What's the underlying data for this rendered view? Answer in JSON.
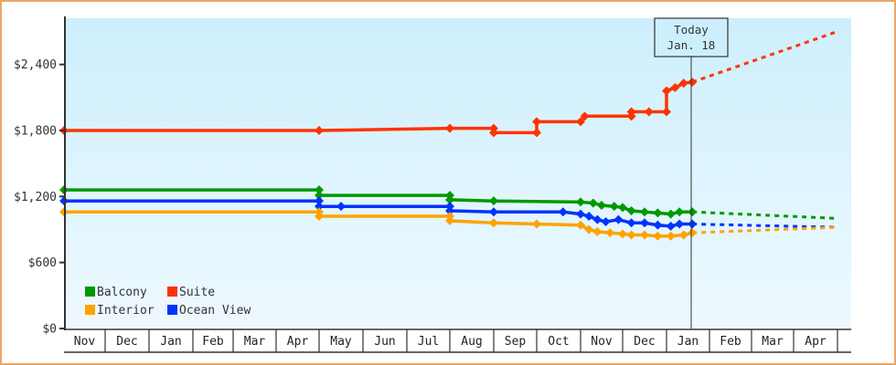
{
  "chart_data": {
    "type": "line",
    "title": "",
    "xlabel": "",
    "ylabel": "",
    "y_ticks": [
      {
        "label": "$0",
        "value": 0
      },
      {
        "label": "$600",
        "value": 600
      },
      {
        "label": "$1,200",
        "value": 1200
      },
      {
        "label": "$1,800",
        "value": 1800
      },
      {
        "label": "$2,400",
        "value": 2400
      }
    ],
    "ylim": [
      0,
      2800
    ],
    "x_months": [
      "Nov",
      "Dec",
      "Jan",
      "Feb",
      "Mar",
      "Apr",
      "May",
      "Jun",
      "Jul",
      "Aug",
      "Sep",
      "Oct",
      "Nov",
      "Dec",
      "Jan",
      "Feb",
      "Mar",
      "Apr"
    ],
    "grid": false,
    "legend_position": "lower-left",
    "today_marker": {
      "line1": "Today",
      "line2": "Jan. 18"
    },
    "series": [
      {
        "name": "Suite",
        "color": "#ff3300",
        "points": [
          [
            0.0,
            1800
          ],
          [
            6.0,
            1800
          ],
          [
            9.0,
            1820
          ],
          [
            10.0,
            1820
          ],
          [
            10.0,
            1780
          ],
          [
            11.0,
            1780
          ],
          [
            11.0,
            1880
          ],
          [
            12.0,
            1880
          ],
          [
            12.1,
            1930
          ],
          [
            13.2,
            1930
          ],
          [
            13.2,
            1970
          ],
          [
            13.6,
            1970
          ],
          [
            14.0,
            1970
          ],
          [
            14.0,
            2160
          ],
          [
            14.2,
            2190
          ],
          [
            14.4,
            2230
          ],
          [
            14.6,
            2240
          ]
        ],
        "forecast": [
          [
            14.6,
            2240
          ],
          [
            18.0,
            2700
          ]
        ]
      },
      {
        "name": "Balcony",
        "color": "#009900",
        "points": [
          [
            0.0,
            1260
          ],
          [
            6.0,
            1260
          ],
          [
            6.0,
            1210
          ],
          [
            9.0,
            1210
          ],
          [
            9.0,
            1170
          ],
          [
            10.0,
            1160
          ],
          [
            12.0,
            1150
          ],
          [
            12.3,
            1140
          ],
          [
            12.5,
            1120
          ],
          [
            12.8,
            1110
          ],
          [
            13.0,
            1100
          ],
          [
            13.2,
            1070
          ],
          [
            13.5,
            1060
          ],
          [
            13.8,
            1050
          ],
          [
            14.1,
            1040
          ],
          [
            14.3,
            1060
          ],
          [
            14.6,
            1060
          ]
        ],
        "forecast": [
          [
            14.6,
            1060
          ],
          [
            18.0,
            1000
          ]
        ]
      },
      {
        "name": "Ocean View",
        "color": "#0033ff",
        "points": [
          [
            0.0,
            1160
          ],
          [
            6.0,
            1160
          ],
          [
            6.0,
            1110
          ],
          [
            6.5,
            1110
          ],
          [
            9.0,
            1110
          ],
          [
            9.0,
            1070
          ],
          [
            10.0,
            1060
          ],
          [
            11.6,
            1060
          ],
          [
            12.0,
            1040
          ],
          [
            12.2,
            1020
          ],
          [
            12.4,
            990
          ],
          [
            12.6,
            970
          ],
          [
            12.9,
            990
          ],
          [
            13.2,
            960
          ],
          [
            13.5,
            960
          ],
          [
            13.8,
            940
          ],
          [
            14.1,
            930
          ],
          [
            14.3,
            950
          ],
          [
            14.6,
            950
          ]
        ],
        "forecast": [
          [
            14.6,
            950
          ],
          [
            18.0,
            920
          ]
        ]
      },
      {
        "name": "Interior",
        "color": "#ffa200",
        "points": [
          [
            0.0,
            1060
          ],
          [
            6.0,
            1060
          ],
          [
            6.0,
            1020
          ],
          [
            9.0,
            1020
          ],
          [
            9.0,
            980
          ],
          [
            10.0,
            960
          ],
          [
            11.0,
            950
          ],
          [
            12.0,
            940
          ],
          [
            12.2,
            900
          ],
          [
            12.4,
            880
          ],
          [
            12.7,
            870
          ],
          [
            13.0,
            860
          ],
          [
            13.2,
            850
          ],
          [
            13.5,
            850
          ],
          [
            13.8,
            840
          ],
          [
            14.1,
            840
          ],
          [
            14.4,
            850
          ],
          [
            14.6,
            870
          ]
        ],
        "forecast": [
          [
            14.6,
            870
          ],
          [
            18.0,
            920
          ]
        ]
      }
    ]
  },
  "legend": {
    "items": [
      {
        "label": "Balcony",
        "color": "#009900"
      },
      {
        "label": "Suite",
        "color": "#ff3300"
      },
      {
        "label": "Interior",
        "color": "#ffa200"
      },
      {
        "label": "Ocean View",
        "color": "#0033ff"
      }
    ]
  }
}
